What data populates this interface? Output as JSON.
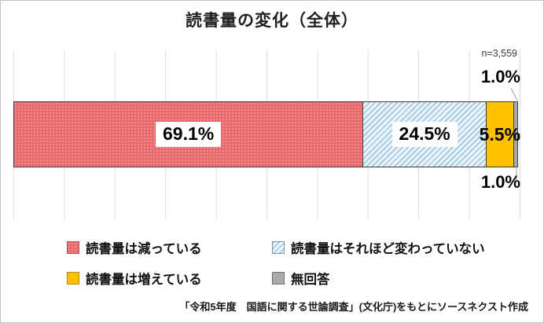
{
  "chart_data": {
    "type": "bar",
    "orientation": "horizontal",
    "stacked": true,
    "title": "読書量の変化（全体）",
    "n_label": "n=3,559",
    "categories": [
      "読書量は減っている",
      "読書量はそれほど変わっていない",
      "読書量は増えている",
      "無回答"
    ],
    "segments": [
      {
        "label": "読書量は減っている",
        "value": 69.1,
        "display": "69.1%",
        "color": "#e9696e",
        "pattern": "dots",
        "value_label_style": "white-box"
      },
      {
        "label": "読書量はそれほど変わっていない",
        "value": 24.5,
        "display": "24.5%",
        "color": "#a9cce6",
        "pattern": "diagonal-stripes",
        "value_label_style": "white-box"
      },
      {
        "label": "読書量は増えている",
        "value": 5.5,
        "display": "5.5%",
        "color": "#ffc000",
        "pattern": "solid",
        "value_label_style": "plain"
      },
      {
        "label": "無回答",
        "value": 1.0,
        "display": "1.0%",
        "color": "#a9a9a9",
        "pattern": "solid",
        "value_label_style": "outside"
      }
    ],
    "outside_labels": {
      "top": "1.0%",
      "bottom": "1.0%"
    },
    "axis": {
      "xlim": [
        0,
        100
      ],
      "gridline_step_percent": 10,
      "tick_labels_visible": false,
      "gridline_color": "#dcdcdc"
    },
    "legend": {
      "position": "bottom",
      "columns": 2
    },
    "source_note": "「令和5年度　国語に関する世論調査」(文化庁)をもとにソースネクスト作成"
  }
}
